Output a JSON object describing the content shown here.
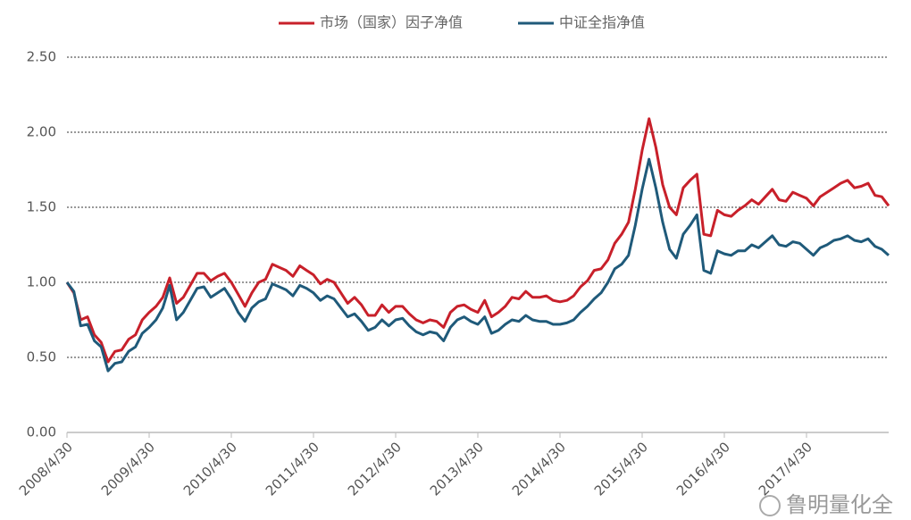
{
  "chart_data": {
    "type": "line",
    "categories": [
      "2008/4/30",
      null,
      null,
      null,
      null,
      null,
      null,
      null,
      null,
      null,
      null,
      null,
      "2009/4/30",
      null,
      null,
      null,
      null,
      null,
      null,
      null,
      null,
      null,
      null,
      null,
      "2010/4/30",
      null,
      null,
      null,
      null,
      null,
      null,
      null,
      null,
      null,
      null,
      null,
      "2011/4/30",
      null,
      null,
      null,
      null,
      null,
      null,
      null,
      null,
      null,
      null,
      null,
      "2012/4/30",
      null,
      null,
      null,
      null,
      null,
      null,
      null,
      null,
      null,
      null,
      null,
      "2013/4/30",
      null,
      null,
      null,
      null,
      null,
      null,
      null,
      null,
      null,
      null,
      null,
      "2014/4/30",
      null,
      null,
      null,
      null,
      null,
      null,
      null,
      null,
      null,
      null,
      null,
      "2015/4/30",
      null,
      null,
      null,
      null,
      null,
      null,
      null,
      null,
      null,
      null,
      null,
      "2016/4/30",
      null,
      null,
      null,
      null,
      null,
      null,
      null,
      null,
      null,
      null,
      null,
      "2017/4/30",
      null,
      null,
      null,
      null,
      null,
      null,
      null,
      null,
      null,
      null,
      null,
      null
    ],
    "series": [
      {
        "name": "市场（国家）因子净值",
        "color": "#c8202a",
        "values": [
          1.0,
          0.93,
          0.75,
          0.77,
          0.65,
          0.6,
          0.47,
          0.54,
          0.55,
          0.62,
          0.65,
          0.75,
          0.8,
          0.84,
          0.9,
          1.03,
          0.86,
          0.9,
          0.98,
          1.06,
          1.06,
          1.01,
          1.04,
          1.06,
          1.0,
          0.92,
          0.84,
          0.93,
          1.0,
          1.02,
          1.12,
          1.1,
          1.08,
          1.04,
          1.11,
          1.08,
          1.05,
          0.99,
          1.02,
          1.0,
          0.93,
          0.86,
          0.9,
          0.85,
          0.78,
          0.78,
          0.85,
          0.8,
          0.84,
          0.84,
          0.79,
          0.75,
          0.73,
          0.75,
          0.74,
          0.7,
          0.8,
          0.84,
          0.85,
          0.82,
          0.8,
          0.88,
          0.77,
          0.8,
          0.84,
          0.9,
          0.89,
          0.94,
          0.9,
          0.9,
          0.91,
          0.88,
          0.87,
          0.88,
          0.91,
          0.97,
          1.01,
          1.08,
          1.09,
          1.15,
          1.26,
          1.32,
          1.4,
          1.62,
          1.88,
          2.09,
          1.9,
          1.65,
          1.5,
          1.45,
          1.63,
          1.68,
          1.72,
          1.32,
          1.31,
          1.48,
          1.45,
          1.44,
          1.48,
          1.51,
          1.55,
          1.52,
          1.57,
          1.62,
          1.55,
          1.54,
          1.6,
          1.58,
          1.56,
          1.51,
          1.57,
          1.6,
          1.63,
          1.66,
          1.68,
          1.63,
          1.64,
          1.66,
          1.58,
          1.57,
          1.51
        ]
      },
      {
        "name": "中证全指净值",
        "color": "#1f5a7a",
        "values": [
          1.0,
          0.94,
          0.71,
          0.72,
          0.61,
          0.57,
          0.41,
          0.46,
          0.47,
          0.54,
          0.57,
          0.66,
          0.7,
          0.75,
          0.83,
          0.98,
          0.75,
          0.8,
          0.88,
          0.96,
          0.97,
          0.9,
          0.93,
          0.96,
          0.89,
          0.8,
          0.74,
          0.83,
          0.87,
          0.89,
          0.99,
          0.97,
          0.95,
          0.91,
          0.98,
          0.96,
          0.93,
          0.88,
          0.91,
          0.89,
          0.83,
          0.77,
          0.79,
          0.74,
          0.68,
          0.7,
          0.75,
          0.71,
          0.75,
          0.76,
          0.71,
          0.67,
          0.65,
          0.67,
          0.66,
          0.61,
          0.7,
          0.75,
          0.77,
          0.74,
          0.72,
          0.77,
          0.66,
          0.68,
          0.72,
          0.75,
          0.74,
          0.78,
          0.75,
          0.74,
          0.74,
          0.72,
          0.72,
          0.73,
          0.75,
          0.8,
          0.84,
          0.89,
          0.93,
          1.0,
          1.09,
          1.12,
          1.18,
          1.38,
          1.62,
          1.82,
          1.63,
          1.4,
          1.22,
          1.16,
          1.32,
          1.38,
          1.45,
          1.08,
          1.06,
          1.21,
          1.19,
          1.18,
          1.21,
          1.21,
          1.25,
          1.23,
          1.27,
          1.31,
          1.25,
          1.24,
          1.27,
          1.26,
          1.22,
          1.18,
          1.23,
          1.25,
          1.28,
          1.29,
          1.31,
          1.28,
          1.27,
          1.29,
          1.24,
          1.22,
          1.18
        ]
      }
    ],
    "ylim": [
      0,
      2.5
    ],
    "yticks": [
      {
        "value": 0,
        "label": "0.00"
      },
      {
        "value": 0.5,
        "label": "0.50"
      },
      {
        "value": 1,
        "label": "1.00"
      },
      {
        "value": 1.5,
        "label": "1.50"
      },
      {
        "value": 2,
        "label": "2.00"
      },
      {
        "value": 2.5,
        "label": "2.50"
      }
    ],
    "grid": true,
    "legend": "top",
    "watermark": "鲁明量化全"
  }
}
